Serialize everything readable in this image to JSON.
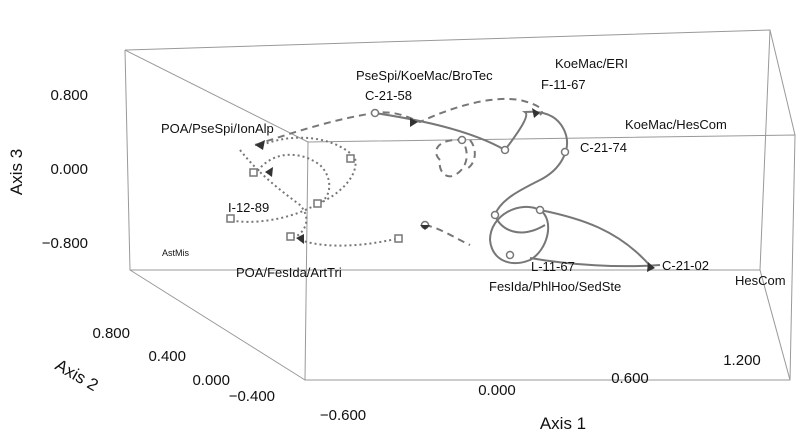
{
  "chart_data": {
    "type": "scatter",
    "projection": "3d-perspective",
    "axes": {
      "axis1": {
        "title": "Axis 1",
        "ticks": [
          "−0.600",
          "0.000",
          "0.600",
          "1.200"
        ],
        "range": [
          -0.9,
          1.6
        ]
      },
      "axis2": {
        "title": "Axis 2",
        "ticks": [
          "0.800",
          "0.400",
          "0.000",
          "−0.400"
        ],
        "range": [
          -0.6,
          1.0
        ]
      },
      "axis3": {
        "title": "Axis 3",
        "ticks": [
          "0.800",
          "0.000",
          "−0.800"
        ],
        "range": [
          -1.3,
          1.3
        ]
      }
    },
    "grid": false,
    "labels": [
      {
        "id": "pse",
        "text": "PseSpi/KoeMac/BroTec"
      },
      {
        "id": "c2158",
        "text": "C-21-58"
      },
      {
        "id": "koeeri",
        "text": "KoeMac/ERI"
      },
      {
        "id": "f1167",
        "text": "F-11-67"
      },
      {
        "id": "koehes",
        "text": "KoeMac/HesCom"
      },
      {
        "id": "c2174",
        "text": "C-21-74"
      },
      {
        "id": "poapse",
        "text": "POA/PseSpi/IonAlp"
      },
      {
        "id": "i1289",
        "text": "I-12-89"
      },
      {
        "id": "astmis",
        "text": "AstMis"
      },
      {
        "id": "poafes",
        "text": "POA/FesIda/ArtTri"
      },
      {
        "id": "l1167",
        "text": "L-11-67"
      },
      {
        "id": "fesida",
        "text": "FesIda/PhlHoo/SedSte"
      },
      {
        "id": "c2102",
        "text": "C-21-02"
      },
      {
        "id": "hescom",
        "text": "HesCom"
      }
    ],
    "trajectories": [
      {
        "line": "solid",
        "marker": "circle"
      },
      {
        "line": "dashed",
        "marker": "circle"
      },
      {
        "line": "dotted",
        "marker": "square"
      },
      {
        "line": "dashed",
        "marker": "triangle"
      }
    ],
    "line_color": "#777777"
  }
}
